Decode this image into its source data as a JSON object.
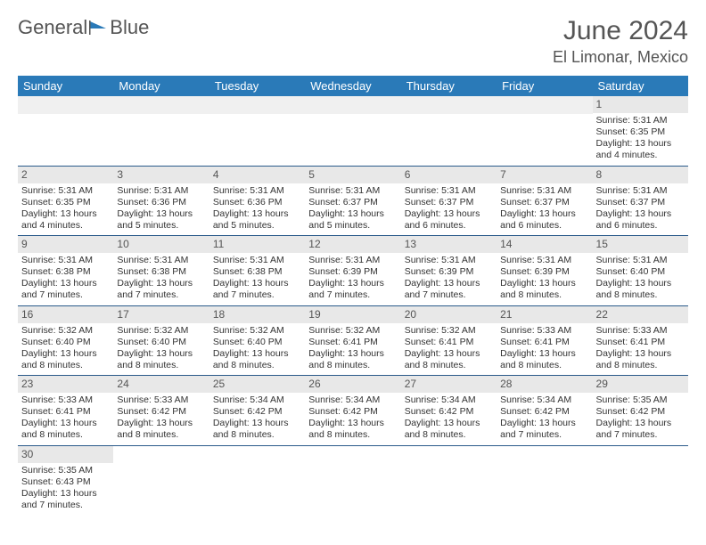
{
  "logo": {
    "part1": "General",
    "part2": "Blue",
    "flag_color": "#2a7ab8"
  },
  "header": {
    "month_title": "June 2024",
    "location": "El Limonar, Mexico"
  },
  "colors": {
    "header_bg": "#2a7ab8",
    "header_text": "#ffffff",
    "daynum_bg": "#e8e8e8",
    "row_border": "#2a5a8a",
    "text": "#333333"
  },
  "day_headers": [
    "Sunday",
    "Monday",
    "Tuesday",
    "Wednesday",
    "Thursday",
    "Friday",
    "Saturday"
  ],
  "weeks": [
    [
      null,
      null,
      null,
      null,
      null,
      null,
      {
        "n": "1",
        "sr": "Sunrise: 5:31 AM",
        "ss": "Sunset: 6:35 PM",
        "dl": "Daylight: 13 hours and 4 minutes."
      }
    ],
    [
      {
        "n": "2",
        "sr": "Sunrise: 5:31 AM",
        "ss": "Sunset: 6:35 PM",
        "dl": "Daylight: 13 hours and 4 minutes."
      },
      {
        "n": "3",
        "sr": "Sunrise: 5:31 AM",
        "ss": "Sunset: 6:36 PM",
        "dl": "Daylight: 13 hours and 5 minutes."
      },
      {
        "n": "4",
        "sr": "Sunrise: 5:31 AM",
        "ss": "Sunset: 6:36 PM",
        "dl": "Daylight: 13 hours and 5 minutes."
      },
      {
        "n": "5",
        "sr": "Sunrise: 5:31 AM",
        "ss": "Sunset: 6:37 PM",
        "dl": "Daylight: 13 hours and 5 minutes."
      },
      {
        "n": "6",
        "sr": "Sunrise: 5:31 AM",
        "ss": "Sunset: 6:37 PM",
        "dl": "Daylight: 13 hours and 6 minutes."
      },
      {
        "n": "7",
        "sr": "Sunrise: 5:31 AM",
        "ss": "Sunset: 6:37 PM",
        "dl": "Daylight: 13 hours and 6 minutes."
      },
      {
        "n": "8",
        "sr": "Sunrise: 5:31 AM",
        "ss": "Sunset: 6:37 PM",
        "dl": "Daylight: 13 hours and 6 minutes."
      }
    ],
    [
      {
        "n": "9",
        "sr": "Sunrise: 5:31 AM",
        "ss": "Sunset: 6:38 PM",
        "dl": "Daylight: 13 hours and 7 minutes."
      },
      {
        "n": "10",
        "sr": "Sunrise: 5:31 AM",
        "ss": "Sunset: 6:38 PM",
        "dl": "Daylight: 13 hours and 7 minutes."
      },
      {
        "n": "11",
        "sr": "Sunrise: 5:31 AM",
        "ss": "Sunset: 6:38 PM",
        "dl": "Daylight: 13 hours and 7 minutes."
      },
      {
        "n": "12",
        "sr": "Sunrise: 5:31 AM",
        "ss": "Sunset: 6:39 PM",
        "dl": "Daylight: 13 hours and 7 minutes."
      },
      {
        "n": "13",
        "sr": "Sunrise: 5:31 AM",
        "ss": "Sunset: 6:39 PM",
        "dl": "Daylight: 13 hours and 7 minutes."
      },
      {
        "n": "14",
        "sr": "Sunrise: 5:31 AM",
        "ss": "Sunset: 6:39 PM",
        "dl": "Daylight: 13 hours and 8 minutes."
      },
      {
        "n": "15",
        "sr": "Sunrise: 5:31 AM",
        "ss": "Sunset: 6:40 PM",
        "dl": "Daylight: 13 hours and 8 minutes."
      }
    ],
    [
      {
        "n": "16",
        "sr": "Sunrise: 5:32 AM",
        "ss": "Sunset: 6:40 PM",
        "dl": "Daylight: 13 hours and 8 minutes."
      },
      {
        "n": "17",
        "sr": "Sunrise: 5:32 AM",
        "ss": "Sunset: 6:40 PM",
        "dl": "Daylight: 13 hours and 8 minutes."
      },
      {
        "n": "18",
        "sr": "Sunrise: 5:32 AM",
        "ss": "Sunset: 6:40 PM",
        "dl": "Daylight: 13 hours and 8 minutes."
      },
      {
        "n": "19",
        "sr": "Sunrise: 5:32 AM",
        "ss": "Sunset: 6:41 PM",
        "dl": "Daylight: 13 hours and 8 minutes."
      },
      {
        "n": "20",
        "sr": "Sunrise: 5:32 AM",
        "ss": "Sunset: 6:41 PM",
        "dl": "Daylight: 13 hours and 8 minutes."
      },
      {
        "n": "21",
        "sr": "Sunrise: 5:33 AM",
        "ss": "Sunset: 6:41 PM",
        "dl": "Daylight: 13 hours and 8 minutes."
      },
      {
        "n": "22",
        "sr": "Sunrise: 5:33 AM",
        "ss": "Sunset: 6:41 PM",
        "dl": "Daylight: 13 hours and 8 minutes."
      }
    ],
    [
      {
        "n": "23",
        "sr": "Sunrise: 5:33 AM",
        "ss": "Sunset: 6:41 PM",
        "dl": "Daylight: 13 hours and 8 minutes."
      },
      {
        "n": "24",
        "sr": "Sunrise: 5:33 AM",
        "ss": "Sunset: 6:42 PM",
        "dl": "Daylight: 13 hours and 8 minutes."
      },
      {
        "n": "25",
        "sr": "Sunrise: 5:34 AM",
        "ss": "Sunset: 6:42 PM",
        "dl": "Daylight: 13 hours and 8 minutes."
      },
      {
        "n": "26",
        "sr": "Sunrise: 5:34 AM",
        "ss": "Sunset: 6:42 PM",
        "dl": "Daylight: 13 hours and 8 minutes."
      },
      {
        "n": "27",
        "sr": "Sunrise: 5:34 AM",
        "ss": "Sunset: 6:42 PM",
        "dl": "Daylight: 13 hours and 8 minutes."
      },
      {
        "n": "28",
        "sr": "Sunrise: 5:34 AM",
        "ss": "Sunset: 6:42 PM",
        "dl": "Daylight: 13 hours and 7 minutes."
      },
      {
        "n": "29",
        "sr": "Sunrise: 5:35 AM",
        "ss": "Sunset: 6:42 PM",
        "dl": "Daylight: 13 hours and 7 minutes."
      }
    ],
    [
      {
        "n": "30",
        "sr": "Sunrise: 5:35 AM",
        "ss": "Sunset: 6:43 PM",
        "dl": "Daylight: 13 hours and 7 minutes."
      },
      null,
      null,
      null,
      null,
      null,
      null
    ]
  ]
}
